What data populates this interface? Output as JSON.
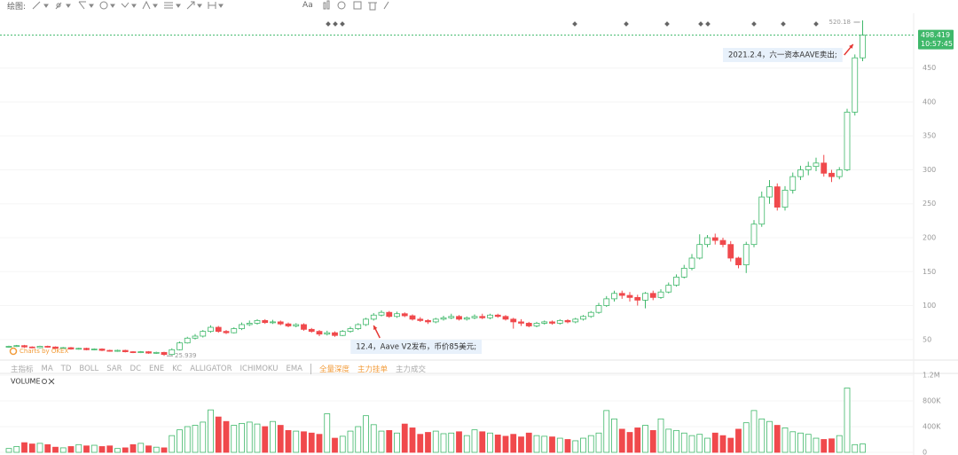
{
  "toolbar": {
    "label": "绘图:",
    "font_button": "Aa"
  },
  "chart_data": {
    "type": "candlestick",
    "open": [
      39,
      40,
      41,
      39,
      38,
      40,
      39,
      37,
      38,
      36,
      37,
      35,
      36,
      34,
      33,
      34,
      32,
      31,
      32,
      30,
      31,
      28,
      35,
      45,
      52,
      55,
      62,
      68,
      62,
      60,
      66,
      72,
      74,
      78,
      75,
      76,
      73,
      70,
      72,
      65,
      62,
      58,
      60,
      56,
      62,
      66,
      72,
      80,
      86,
      90,
      84,
      88,
      85,
      80,
      78,
      76,
      80,
      82,
      84,
      80,
      82,
      84,
      82,
      86,
      84,
      80,
      76,
      74,
      70,
      74,
      76,
      74,
      78,
      76,
      80,
      84,
      90,
      100,
      110,
      118,
      115,
      112,
      108,
      118,
      112,
      120,
      130,
      142,
      155,
      170,
      190,
      200,
      196,
      190,
      170,
      160,
      190,
      220,
      260,
      275,
      245,
      270,
      290,
      300,
      305,
      310,
      295,
      290,
      300,
      385,
      465
    ],
    "high": [
      41,
      42,
      42,
      40,
      41,
      41,
      40,
      39,
      39,
      38,
      38,
      37,
      37,
      35,
      35,
      35,
      33,
      33,
      33,
      32,
      32,
      37,
      47,
      54,
      58,
      64,
      71,
      70,
      64,
      68,
      75,
      78,
      80,
      80,
      79,
      78,
      75,
      74,
      74,
      67,
      64,
      63,
      62,
      64,
      69,
      74,
      82,
      89,
      93,
      92,
      91,
      90,
      87,
      83,
      80,
      82,
      85,
      88,
      86,
      84,
      87,
      88,
      88,
      88,
      86,
      82,
      80,
      76,
      76,
      78,
      78,
      80,
      80,
      82,
      86,
      92,
      104,
      114,
      122,
      122,
      120,
      116,
      120,
      122,
      124,
      134,
      146,
      160,
      176,
      205,
      204,
      206,
      200,
      195,
      172,
      194,
      226,
      268,
      285,
      280,
      276,
      296,
      306,
      312,
      318,
      322,
      300,
      304,
      390,
      470,
      520.18
    ],
    "low": [
      38,
      39,
      38,
      37,
      37,
      38,
      36,
      36,
      35,
      35,
      34,
      34,
      33,
      32,
      32,
      31,
      30,
      30,
      29,
      29,
      25.939,
      27,
      34,
      44,
      50,
      53,
      60,
      60,
      58,
      59,
      64,
      70,
      72,
      73,
      73,
      71,
      68,
      68,
      63,
      60,
      55,
      56,
      54,
      55,
      60,
      64,
      70,
      78,
      84,
      82,
      82,
      83,
      78,
      76,
      73,
      74,
      78,
      80,
      78,
      78,
      80,
      80,
      80,
      82,
      78,
      66,
      70,
      68,
      68,
      72,
      72,
      72,
      74,
      74,
      78,
      82,
      88,
      98,
      106,
      110,
      106,
      100,
      96,
      108,
      110,
      118,
      128,
      140,
      152,
      168,
      186,
      190,
      186,
      165,
      155,
      148,
      186,
      216,
      250,
      240,
      240,
      265,
      285,
      292,
      298,
      290,
      282,
      286,
      298,
      380,
      460
    ],
    "close": [
      40,
      41,
      39,
      38,
      40,
      39,
      37,
      38,
      36,
      37,
      35,
      36,
      34,
      33,
      34,
      32,
      31,
      32,
      30,
      31,
      28,
      35,
      45,
      52,
      55,
      62,
      68,
      62,
      60,
      66,
      72,
      74,
      78,
      75,
      76,
      73,
      70,
      72,
      65,
      62,
      58,
      60,
      56,
      62,
      66,
      72,
      80,
      86,
      90,
      84,
      88,
      85,
      80,
      78,
      76,
      80,
      82,
      84,
      80,
      82,
      84,
      82,
      86,
      84,
      80,
      76,
      74,
      70,
      74,
      76,
      74,
      78,
      76,
      80,
      84,
      90,
      100,
      110,
      118,
      115,
      112,
      108,
      118,
      112,
      120,
      130,
      142,
      155,
      170,
      190,
      200,
      196,
      190,
      170,
      160,
      190,
      220,
      260,
      275,
      245,
      270,
      290,
      300,
      305,
      310,
      295,
      290,
      300,
      385,
      465,
      498.419
    ],
    "ylim": [
      21,
      528
    ],
    "yticks": [
      50,
      100,
      150,
      200,
      250,
      300,
      350,
      400,
      450
    ],
    "up_color": "#3fb86a",
    "down_color": "#f0494c",
    "countdown": "10:57:45",
    "watermark": "Charts by OKEX",
    "annotations": [
      {
        "text": "2021.2.4，六一资本AAVE卖出;",
        "index": 109
      },
      {
        "text": "12.4，Aave V2发布，币价85美元;",
        "index": 47
      }
    ],
    "indicators": [
      "主指标",
      "MA",
      "TD",
      "BOLL",
      "SAR",
      "DC",
      "ENE",
      "KC",
      "ALLIGATOR",
      "ICHIMOKU",
      "EMA",
      "全量深度",
      "主力挂单",
      "主力成交"
    ],
    "volume_title": "VOLUME",
    "volume": [
      60000,
      90000,
      150000,
      130000,
      140000,
      120000,
      80000,
      70000,
      90000,
      120000,
      100000,
      110000,
      90000,
      100000,
      60000,
      70000,
      120000,
      140000,
      100000,
      80000,
      70000,
      260000,
      350000,
      400000,
      420000,
      470000,
      660000,
      550000,
      480000,
      420000,
      450000,
      470000,
      440000,
      400000,
      480000,
      420000,
      340000,
      330000,
      320000,
      300000,
      280000,
      600000,
      220000,
      250000,
      330000,
      400000,
      570000,
      430000,
      330000,
      340000,
      300000,
      440000,
      380000,
      280000,
      310000,
      330000,
      290000,
      300000,
      320000,
      260000,
      350000,
      320000,
      300000,
      270000,
      250000,
      280000,
      240000,
      300000,
      260000,
      250000,
      240000,
      220000,
      200000,
      180000,
      220000,
      260000,
      300000,
      650000,
      520000,
      360000,
      310000,
      380000,
      420000,
      340000,
      520000,
      360000,
      340000,
      300000,
      260000,
      280000,
      220000,
      300000,
      260000,
      220000,
      360000,
      460000,
      650000,
      520000,
      480000,
      420000,
      380000,
      320000,
      300000,
      280000,
      220000,
      200000,
      210000,
      260000,
      1000000,
      120000,
      130000
    ],
    "volume_ylim": [
      0,
      1200000
    ],
    "volume_yticks": [
      {
        "value": 0,
        "label": "0"
      },
      {
        "value": 400000,
        "label": "400K"
      },
      {
        "value": 800000,
        "label": "800K"
      },
      {
        "value": 1200000,
        "label": "1.2M"
      }
    ]
  }
}
